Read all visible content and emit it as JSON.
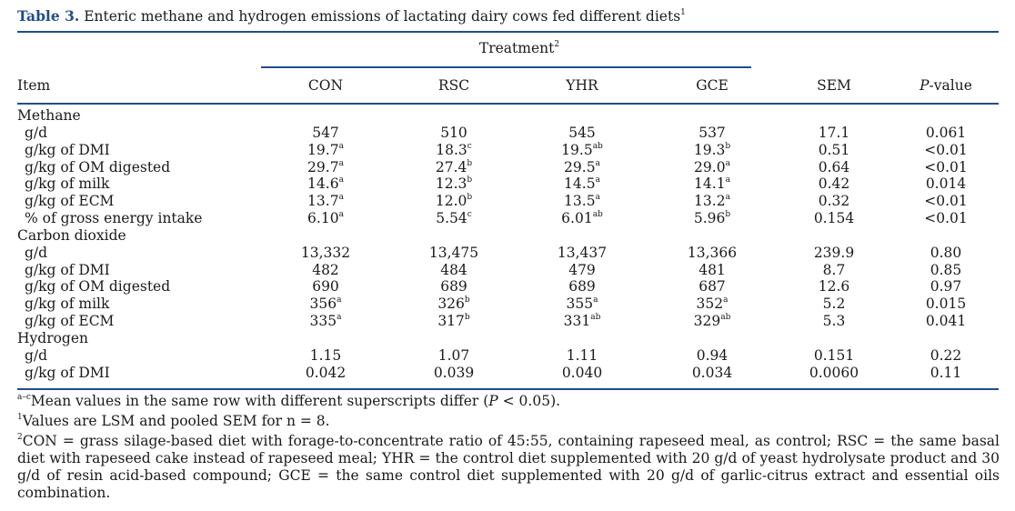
{
  "caption": {
    "lead": "Table 3.",
    "text": "Enteric methane and hydrogen emissions of lactating dairy cows fed different diets",
    "mark": "1"
  },
  "header": {
    "treatment": "Treatment",
    "treatment_mark": "2",
    "item": "Item",
    "columns": [
      "CON",
      "RSC",
      "YHR",
      "GCE",
      "SEM"
    ],
    "pvalue_italic": "P",
    "pvalue_rest": "-value"
  },
  "rows": [
    {
      "kind": "group",
      "label": "Methane"
    },
    {
      "kind": "data",
      "label": "g/d",
      "v": [
        [
          "547",
          ""
        ],
        [
          "510",
          ""
        ],
        [
          "545",
          ""
        ],
        [
          "537",
          ""
        ],
        [
          "17.1",
          ""
        ],
        [
          "0.061",
          ""
        ]
      ]
    },
    {
      "kind": "data",
      "label": "g/kg of DMI",
      "v": [
        [
          "19.7",
          "a"
        ],
        [
          "18.3",
          "c"
        ],
        [
          "19.5",
          "ab"
        ],
        [
          "19.3",
          "b"
        ],
        [
          "0.51",
          ""
        ],
        [
          "<0.01",
          ""
        ]
      ]
    },
    {
      "kind": "data",
      "label": "g/kg of OM digested",
      "v": [
        [
          "29.7",
          "a"
        ],
        [
          "27.4",
          "b"
        ],
        [
          "29.5",
          "a"
        ],
        [
          "29.0",
          "a"
        ],
        [
          "0.64",
          ""
        ],
        [
          "<0.01",
          ""
        ]
      ]
    },
    {
      "kind": "data",
      "label": "g/kg of milk",
      "v": [
        [
          "14.6",
          "a"
        ],
        [
          "12.3",
          "b"
        ],
        [
          "14.5",
          "a"
        ],
        [
          "14.1",
          "a"
        ],
        [
          "0.42",
          ""
        ],
        [
          "0.014",
          ""
        ]
      ]
    },
    {
      "kind": "data",
      "label": "g/kg of ECM",
      "v": [
        [
          "13.7",
          "a"
        ],
        [
          "12.0",
          "b"
        ],
        [
          "13.5",
          "a"
        ],
        [
          "13.2",
          "a"
        ],
        [
          "0.32",
          ""
        ],
        [
          "<0.01",
          ""
        ]
      ]
    },
    {
      "kind": "data",
      "label": "% of gross energy intake",
      "v": [
        [
          "6.10",
          "a"
        ],
        [
          "5.54",
          "c"
        ],
        [
          "6.01",
          "ab"
        ],
        [
          "5.96",
          "b"
        ],
        [
          "0.154",
          ""
        ],
        [
          "<0.01",
          ""
        ]
      ]
    },
    {
      "kind": "group",
      "label": "Carbon dioxide"
    },
    {
      "kind": "data",
      "label": "g/d",
      "v": [
        [
          "13,332",
          ""
        ],
        [
          "13,475",
          ""
        ],
        [
          "13,437",
          ""
        ],
        [
          "13,366",
          ""
        ],
        [
          "239.9",
          ""
        ],
        [
          "0.80",
          ""
        ]
      ]
    },
    {
      "kind": "data",
      "label": "g/kg of DMI",
      "v": [
        [
          "482",
          ""
        ],
        [
          "484",
          ""
        ],
        [
          "479",
          ""
        ],
        [
          "481",
          ""
        ],
        [
          "8.7",
          ""
        ],
        [
          "0.85",
          ""
        ]
      ]
    },
    {
      "kind": "data",
      "label": "g/kg of OM digested",
      "v": [
        [
          "690",
          ""
        ],
        [
          "689",
          ""
        ],
        [
          "689",
          ""
        ],
        [
          "687",
          ""
        ],
        [
          "12.6",
          ""
        ],
        [
          "0.97",
          ""
        ]
      ]
    },
    {
      "kind": "data",
      "label": "g/kg of milk",
      "v": [
        [
          "356",
          "a"
        ],
        [
          "326",
          "b"
        ],
        [
          "355",
          "a"
        ],
        [
          "352",
          "a"
        ],
        [
          "5.2",
          ""
        ],
        [
          "0.015",
          ""
        ]
      ]
    },
    {
      "kind": "data",
      "label": "g/kg of ECM",
      "v": [
        [
          "335",
          "a"
        ],
        [
          "317",
          "b"
        ],
        [
          "331",
          "ab"
        ],
        [
          "329",
          "ab"
        ],
        [
          "5.3",
          ""
        ],
        [
          "0.041",
          ""
        ]
      ]
    },
    {
      "kind": "group",
      "label": "Hydrogen"
    },
    {
      "kind": "data",
      "label": "g/d",
      "v": [
        [
          "1.15",
          ""
        ],
        [
          "1.07",
          ""
        ],
        [
          "1.11",
          ""
        ],
        [
          "0.94",
          ""
        ],
        [
          "0.151",
          ""
        ],
        [
          "0.22",
          ""
        ]
      ]
    },
    {
      "kind": "data",
      "label": "g/kg of DMI",
      "v": [
        [
          "0.042",
          ""
        ],
        [
          "0.039",
          ""
        ],
        [
          "0.040",
          ""
        ],
        [
          "0.034",
          ""
        ],
        [
          "0.0060",
          ""
        ],
        [
          "0.11",
          ""
        ]
      ]
    }
  ],
  "footnotes": {
    "f1_mark": "a–c",
    "f1_text_a": "Mean values in the same row with different superscripts differ (",
    "f1_italic": "P",
    "f1_text_b": " < 0.05).",
    "f2_mark": "1",
    "f2_text": "Values are LSM and pooled SEM for n = 8.",
    "f3_mark": "2",
    "f3_text": "CON = grass silage-based diet with forage-to-concentrate ratio of 45:55, containing rapeseed meal, as control; RSC = the same basal diet with rapeseed cake instead of rapeseed meal; YHR = the control diet supplemented with 20 g/d of yeast hydrolysate product and 30 g/d of resin acid-based compound; GCE = the same control diet supplemented with 20 g/d of garlic-citrus extract and essential oils combination."
  }
}
